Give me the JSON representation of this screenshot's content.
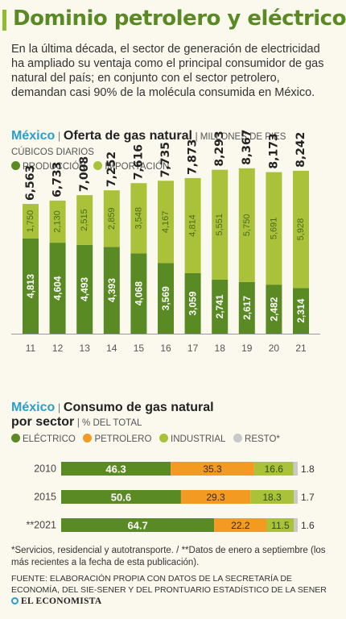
{
  "title": "Dominio petrolero y eléctrico",
  "intro": "En la última década, el sector de generación de electricidad ha ampliado su ventaja como el principal consumidor de gas natural del país; en conjunto con el sector petrolero, demandan casi 90% de la molécula consumida en México.",
  "colors": {
    "title_green": "#5a8a23",
    "produccion": "#5a8a23",
    "importacion": "#a9c23a",
    "electrico": "#5a8a23",
    "petrolero": "#f29a22",
    "industrial": "#a9c23a",
    "resto": "#c9c9c9",
    "accent_blue": "#2aa0c8"
  },
  "chart1": {
    "country": "México",
    "separator": "|",
    "name": "Oferta de gas natural",
    "unit": "| MILLONES DE PIES CÚBICOS DIARIOS"
  },
  "chart2": {
    "country": "México",
    "separator": "|",
    "name_line1": "Consumo de gas natural",
    "name_line2": "por sector",
    "unit": "| % DEL TOTAL"
  },
  "chart_data": [
    {
      "type": "bar",
      "stacked": true,
      "categories": [
        "11",
        "12",
        "13",
        "14",
        "15",
        "16",
        "17",
        "18",
        "19",
        "20",
        "21"
      ],
      "series": [
        {
          "name": "PRODUCCIÓN",
          "values": [
            4813,
            4604,
            4493,
            4393,
            4068,
            3569,
            3059,
            2741,
            2617,
            2482,
            2314
          ],
          "labels": [
            "4,813",
            "4,604",
            "4,493",
            "4,393",
            "4,068",
            "3,569",
            "3,059",
            "2,741",
            "2,617",
            "2,482",
            "2,314"
          ]
        },
        {
          "name": "IMPORTACIÓN",
          "values": [
            1750,
            2130,
            2515,
            2859,
            3548,
            4167,
            4814,
            5551,
            5750,
            5691,
            5928
          ],
          "labels": [
            "1,750",
            "2,130",
            "2,515",
            "2,859",
            "3,548",
            "4,167",
            "4,814",
            "5,551",
            "5,750",
            "5,691",
            "5,928"
          ]
        }
      ],
      "totals": [
        6563,
        6733,
        7008,
        7252,
        7616,
        7735,
        7873,
        8293,
        8367,
        8173,
        8242
      ],
      "total_labels": [
        "6,563",
        "6,733",
        "7,008",
        "7,252",
        "7,616",
        "7,735",
        "7,873",
        "8,293",
        "8,367",
        "8,173",
        "8,242"
      ],
      "ylim": [
        0,
        8400
      ],
      "grid": false,
      "legend": "top"
    },
    {
      "type": "bar",
      "orientation": "horizontal",
      "stacked": true,
      "categories": [
        "2010",
        "2015",
        "**2021"
      ],
      "series": [
        {
          "name": "ELÉCTRICO",
          "values": [
            46.3,
            50.6,
            64.7
          ]
        },
        {
          "name": "PETROLERO",
          "values": [
            35.3,
            29.3,
            22.2
          ]
        },
        {
          "name": "INDUSTRIAL",
          "values": [
            16.6,
            18.3,
            11.5
          ]
        },
        {
          "name": "RESTO*",
          "values": [
            1.8,
            1.7,
            1.6
          ]
        }
      ],
      "xlim": [
        0,
        100
      ],
      "grid": false,
      "legend": "top"
    }
  ],
  "footnote": "*Servicios, residencial y autotransporte. / **Datos de enero a septiembre (los más recientes a la fecha de esta publicación).",
  "source": "FUENTE: ELABORACIÓN PROPIA CON DATOS DE LA SECRETARÍA DE ECONOMÍA, DEL SIE-SENER Y DEL PRONTUARIO ESTADÍSTICO DE LA SENER",
  "brand": "EL ECONOMISTA"
}
